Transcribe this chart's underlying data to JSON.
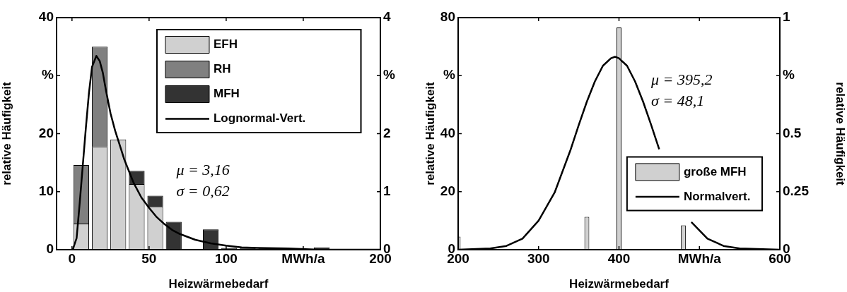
{
  "chart_data": [
    {
      "type": "bar",
      "stacked": true,
      "xlabel": "Heizwärmebedarf",
      "ylabel": "relative Häufigkeit",
      "legend": "top right",
      "grid": false,
      "x": [
        6,
        18,
        30,
        42,
        54,
        66,
        90,
        102,
        114,
        126,
        162
      ],
      "xlim": [
        -10,
        200
      ],
      "xticks": [
        0,
        50,
        100,
        {
          "value": 150,
          "label": "MWh/a"
        },
        200
      ],
      "ylim": [
        0,
        40
      ],
      "yticks": [
        0,
        10,
        20,
        {
          "value": 30,
          "label": "%"
        },
        40
      ],
      "y2lim": [
        0,
        4
      ],
      "y2ticks": [
        0,
        1,
        2,
        {
          "value": 3,
          "label": "%"
        },
        4
      ],
      "annotations": [
        "μ = 3,16",
        "σ = 0,62"
      ],
      "series": [
        {
          "name": "EFH",
          "color": "#d0d0d0",
          "values": [
            4.5,
            17.7,
            19.0,
            11.3,
            7.4,
            0,
            0,
            0,
            0,
            0,
            0
          ]
        },
        {
          "name": "RH",
          "color": "#808080",
          "values": [
            10.1,
            17.3,
            0,
            0,
            0,
            0,
            0,
            0,
            0,
            0,
            0
          ]
        },
        {
          "name": "MFH",
          "color": "#333333",
          "values": [
            0,
            0,
            0,
            2.3,
            1.9,
            4.8,
            3.5,
            0.3,
            0.3,
            0.2,
            0.4
          ]
        },
        {
          "name": "Lognormal-Vert.",
          "type": "line",
          "color": "#000000",
          "x": [
            0.5,
            3,
            5,
            7,
            9,
            11,
            13,
            15.8,
            18,
            20,
            22,
            25,
            28,
            31,
            34,
            37,
            40,
            45,
            50,
            55,
            60,
            65,
            70,
            80,
            90,
            100,
            110,
            120,
            140,
            160,
            200
          ],
          "values": [
            0,
            2,
            8,
            14.5,
            21,
            27,
            31.5,
            33.4,
            32.5,
            30.5,
            27.5,
            23.5,
            20.5,
            18,
            15.5,
            13.5,
            11.5,
            9,
            7.2,
            5.6,
            4.4,
            3.4,
            2.7,
            1.7,
            1.1,
            0.7,
            0.4,
            0.3,
            0.2,
            0,
            0
          ]
        }
      ]
    },
    {
      "type": "bar",
      "xlabel": "Heizwärmebedarf",
      "ylabel": "relative Häufigkeit",
      "y2label": "relative Häufigkeit",
      "legend": "right",
      "grid": false,
      "x": [
        200,
        360,
        400,
        480
      ],
      "xlim": [
        200,
        600
      ],
      "xticks": [
        200,
        300,
        400,
        {
          "value": 500,
          "label": "MWh/a"
        },
        600
      ],
      "ylim": [
        0,
        80
      ],
      "yticks": [
        0,
        20,
        40,
        {
          "value": 60,
          "label": "%"
        },
        80
      ],
      "y2lim": [
        0,
        1
      ],
      "y2ticks": [
        0,
        0.25,
        0.5,
        {
          "value": 0.75,
          "label": "%"
        },
        1
      ],
      "annotations": [
        "μ = 395,2",
        "σ = 48,1"
      ],
      "series": [
        {
          "name": "große MFH",
          "color": "#d0d0d0",
          "values": [
            4.5,
            11.3,
            76.6,
            8.4
          ]
        },
        {
          "name": "Normalvert.",
          "type": "line",
          "color": "#000000",
          "x": [
            200,
            240,
            260,
            280,
            300,
            320,
            340,
            350,
            360,
            370,
            380,
            390,
            395,
            400,
            410,
            420,
            430,
            440,
            450,
            470,
            490,
            510,
            530,
            550,
            600
          ],
          "values": [
            0,
            0.4,
            1.3,
            3.8,
            10,
            19.7,
            34.6,
            43,
            51,
            58,
            63.4,
            66,
            66.5,
            66,
            63.4,
            58,
            51,
            43,
            34.6,
            null,
            9.5,
            3.8,
            1.3,
            0.4,
            0
          ]
        }
      ]
    }
  ]
}
